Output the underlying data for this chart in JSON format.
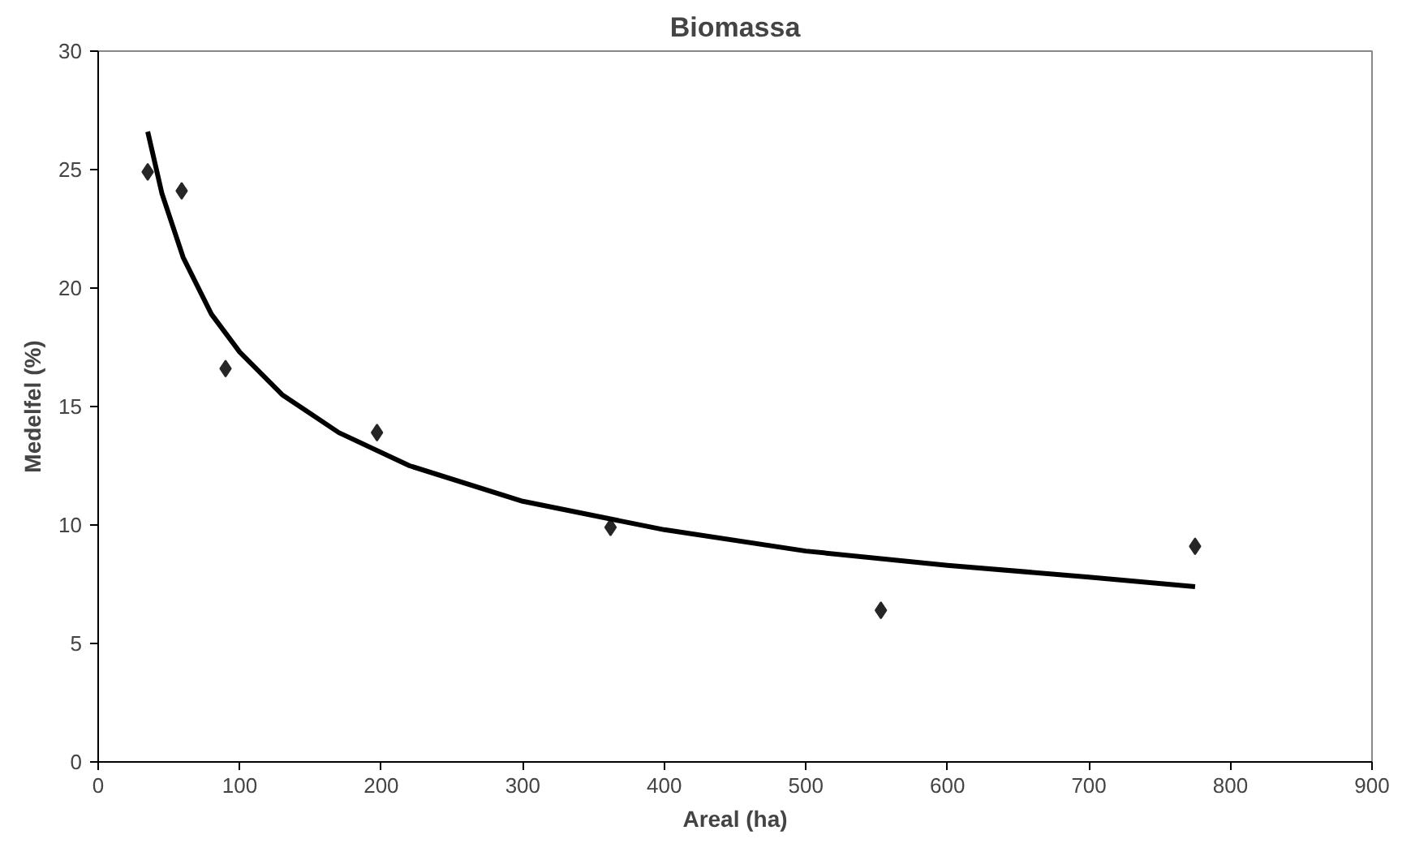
{
  "chart_data": {
    "type": "scatter",
    "title": "Biomassa",
    "xlabel": "Areal (ha)",
    "ylabel": "Medelfel (%)",
    "xlim": [
      0,
      900
    ],
    "xticks": [
      0,
      100,
      200,
      300,
      400,
      500,
      600,
      700,
      800,
      900
    ],
    "ylim": [
      0,
      30
    ],
    "yticks": [
      0,
      5,
      10,
      15,
      20,
      25,
      30
    ],
    "grid": false,
    "marker": "diamond",
    "series": [
      {
        "color": "#262626",
        "x": [
          35,
          59,
          90,
          197,
          362,
          553,
          775
        ],
        "values": [
          24.9,
          24.1,
          16.6,
          13.9,
          9.9,
          6.4,
          9.1
        ]
      },
      {
        "type": "line",
        "color": "#000000",
        "marker": "none",
        "line_style": "solid",
        "x": [
          35,
          45,
          60,
          80,
          100,
          130,
          170,
          220,
          300,
          400,
          500,
          600,
          700,
          775
        ],
        "values": [
          26.6,
          24.0,
          21.3,
          18.9,
          17.3,
          15.5,
          13.9,
          12.5,
          11.0,
          9.8,
          8.9,
          8.3,
          7.8,
          7.4
        ]
      }
    ]
  }
}
